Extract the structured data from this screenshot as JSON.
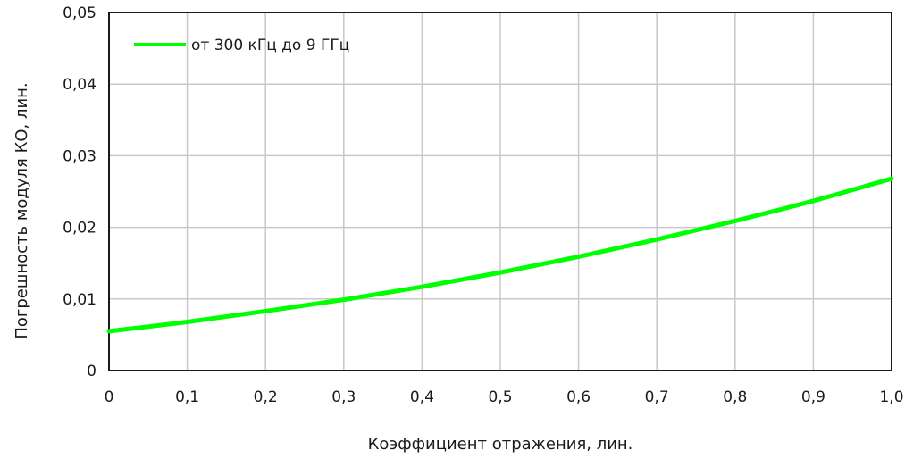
{
  "chart_data": {
    "type": "line",
    "title": "",
    "xlabel": "Коэффициент отражения, лин.",
    "ylabel": "Погрешность модуля КО, лин.",
    "xlim": [
      0,
      1.0
    ],
    "ylim": [
      0,
      0.05
    ],
    "grid": true,
    "legend_position": "top-left",
    "x_ticks": [
      "0",
      "0,1",
      "0,2",
      "0,3",
      "0,4",
      "0,5",
      "0,6",
      "0,7",
      "0,8",
      "0,9",
      "1,0"
    ],
    "y_ticks": [
      "0",
      "0,01",
      "0,02",
      "0,03",
      "0,04",
      "0,05"
    ],
    "series": [
      {
        "name": "от 300 кГц до 9 ГГц",
        "color": "#00ff00",
        "x": [
          0,
          0.1,
          0.2,
          0.3,
          0.4,
          0.5,
          0.6,
          0.7,
          0.8,
          0.9,
          1.0
        ],
        "y": [
          0.0055,
          0.0068,
          0.0083,
          0.0099,
          0.0117,
          0.0137,
          0.0159,
          0.0183,
          0.0209,
          0.0237,
          0.0268
        ]
      }
    ]
  }
}
